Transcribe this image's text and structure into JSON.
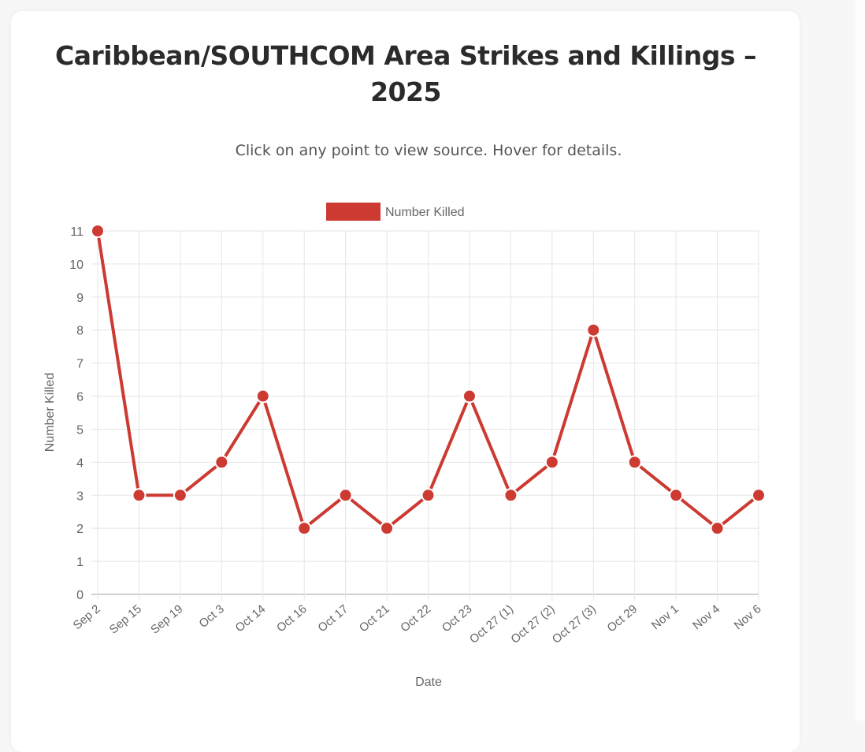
{
  "page": {
    "title": "Caribbean/SOUTHCOM Area Strikes and Killings – 2025",
    "subtitle": "Click on any point to view source. Hover for details."
  },
  "chart_data": {
    "type": "line",
    "xlabel": "Date",
    "ylabel": "Number Killed",
    "ylim": [
      0,
      11
    ],
    "yticks": [
      0,
      1,
      2,
      3,
      4,
      5,
      6,
      7,
      8,
      9,
      10,
      11
    ],
    "grid": true,
    "legend": "top-center",
    "color": "#cc3a32",
    "categories": [
      "Sep 2",
      "Sep 15",
      "Sep 19",
      "Oct 3",
      "Oct 14",
      "Oct 16",
      "Oct 17",
      "Oct 21",
      "Oct 22",
      "Oct 23",
      "Oct 27 (1)",
      "Oct 27 (2)",
      "Oct 27 (3)",
      "Oct 29",
      "Nov 1",
      "Nov 4",
      "Nov 6"
    ],
    "series": [
      {
        "name": "Number Killed",
        "values": [
          11,
          3,
          3,
          4,
          6,
          2,
          3,
          2,
          3,
          6,
          3,
          4,
          8,
          4,
          3,
          2,
          3
        ]
      }
    ]
  }
}
